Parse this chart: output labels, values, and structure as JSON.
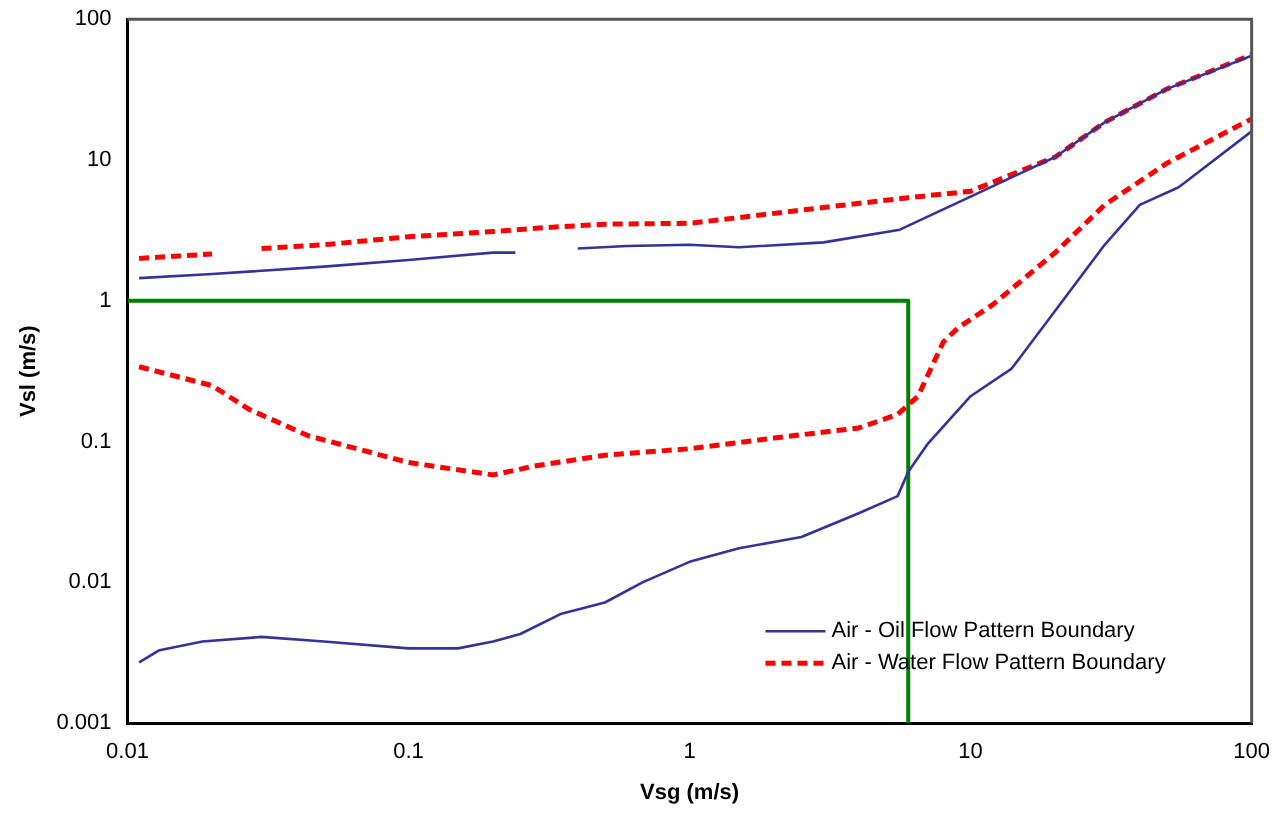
{
  "chart_data": {
    "type": "line",
    "xlabel": "Vsg (m/s)",
    "ylabel": "Vsl (m/s)",
    "log": "xy",
    "xlim": [
      0.01,
      100
    ],
    "ylim": [
      0.001,
      100
    ],
    "xticks": [
      0.01,
      0.1,
      1,
      10,
      100
    ],
    "yticks": [
      0.001,
      0.01,
      0.1,
      1,
      10,
      100
    ],
    "grid": false,
    "legend": "bottom right",
    "marker": "none",
    "series": [
      {
        "name": "Air - Oil Flow Pattern Boundary",
        "color": "#333399",
        "line_style": "solid",
        "x": [
          0.011,
          0.02,
          0.05,
          0.1,
          0.2,
          0.24,
          0.3,
          0.4,
          0.6,
          1,
          1.5,
          3,
          5.6,
          10,
          20,
          30,
          50,
          100
        ],
        "values": [
          1.45,
          1.55,
          1.75,
          1.95,
          2.2,
          2.2,
          null,
          2.35,
          2.45,
          2.5,
          2.4,
          2.6,
          3.2,
          5.5,
          10.5,
          18.5,
          32,
          55
        ]
      },
      {
        "name": "Air - Water Flow Pattern Boundary",
        "color": "#ff0000",
        "line_style": "dashed",
        "x": [
          0.011,
          0.02,
          0.025,
          0.03,
          0.05,
          0.1,
          0.2,
          0.3,
          0.5,
          1,
          1.5,
          3,
          6,
          10,
          20,
          30,
          50,
          100
        ],
        "values": [
          2.0,
          2.15,
          null,
          2.35,
          2.5,
          2.85,
          3.1,
          3.3,
          3.5,
          3.55,
          3.9,
          4.6,
          5.4,
          6.0,
          10.5,
          18.5,
          32,
          56
        ]
      },
      {
        "color": "#333399",
        "line_style": "solid",
        "x": [
          0.011,
          0.013,
          0.0185,
          0.03,
          0.05,
          0.1,
          0.15,
          0.2,
          0.25,
          0.35,
          0.5,
          0.68,
          1,
          1.5,
          2.5,
          4,
          5.5,
          6,
          7,
          10,
          14,
          20,
          30,
          40,
          55,
          100
        ],
        "values": [
          0.0027,
          0.0033,
          0.0038,
          0.0041,
          0.0038,
          0.0034,
          0.0034,
          0.0038,
          0.0043,
          0.006,
          0.0072,
          0.01,
          0.014,
          0.0175,
          0.021,
          0.031,
          0.041,
          0.061,
          0.095,
          0.21,
          0.33,
          0.85,
          2.5,
          4.8,
          6.4,
          16
        ]
      },
      {
        "color": "#ff0000",
        "line_style": "dashed",
        "x": [
          0.011,
          0.02,
          0.027,
          0.044,
          0.1,
          0.2,
          0.28,
          0.5,
          1,
          2,
          4,
          5.5,
          6.5,
          8,
          9,
          12,
          20,
          30,
          50,
          100
        ],
        "values": [
          0.34,
          0.25,
          0.17,
          0.11,
          0.071,
          0.058,
          0.067,
          0.08,
          0.089,
          0.106,
          0.125,
          0.156,
          0.21,
          0.51,
          0.64,
          0.94,
          2.2,
          4.8,
          9.5,
          19.6
        ]
      },
      {
        "color": "#008000",
        "line_style": "solid",
        "x": [
          0.01,
          6,
          6
        ],
        "values": [
          1,
          1,
          0.001
        ]
      }
    ]
  }
}
